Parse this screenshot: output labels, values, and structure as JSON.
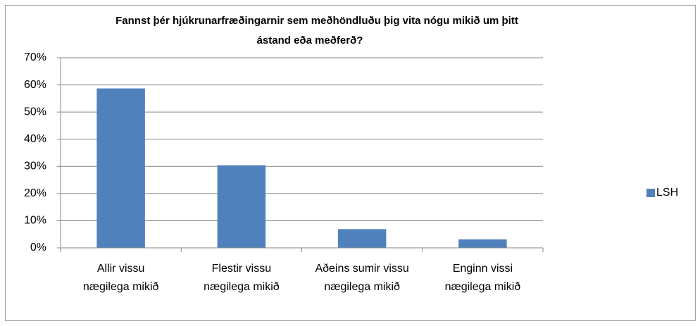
{
  "chart_data": {
    "type": "bar",
    "title": [
      "Fannst þér hjúkrunarfræðingarnir  sem meðhöndluðu  þig vita nógu mikið um þitt",
      "ástand eða  meðferð?"
    ],
    "categories": [
      [
        "Allir vissu",
        "nægilega mikið"
      ],
      [
        "Flestir vissu",
        "nægilega mikið"
      ],
      [
        "Aðeins sumir vissu",
        "nægilega mikið"
      ],
      [
        "Enginn vissi",
        "nægilega mikið"
      ]
    ],
    "series": [
      {
        "name": "LSH",
        "color": "#4f81bd",
        "values": [
          58.7,
          30.4,
          6.9,
          3.1
        ]
      }
    ],
    "ylim": [
      0,
      70
    ],
    "yticks": [
      {
        "value": 0,
        "label": "0%"
      },
      {
        "value": 10,
        "label": "10%"
      },
      {
        "value": 20,
        "label": "20%"
      },
      {
        "value": 30,
        "label": "30%"
      },
      {
        "value": 40,
        "label": "40%"
      },
      {
        "value": 50,
        "label": "50%"
      },
      {
        "value": 60,
        "label": "60%"
      },
      {
        "value": 70,
        "label": "70%"
      }
    ],
    "grid": true,
    "legend": "right"
  }
}
